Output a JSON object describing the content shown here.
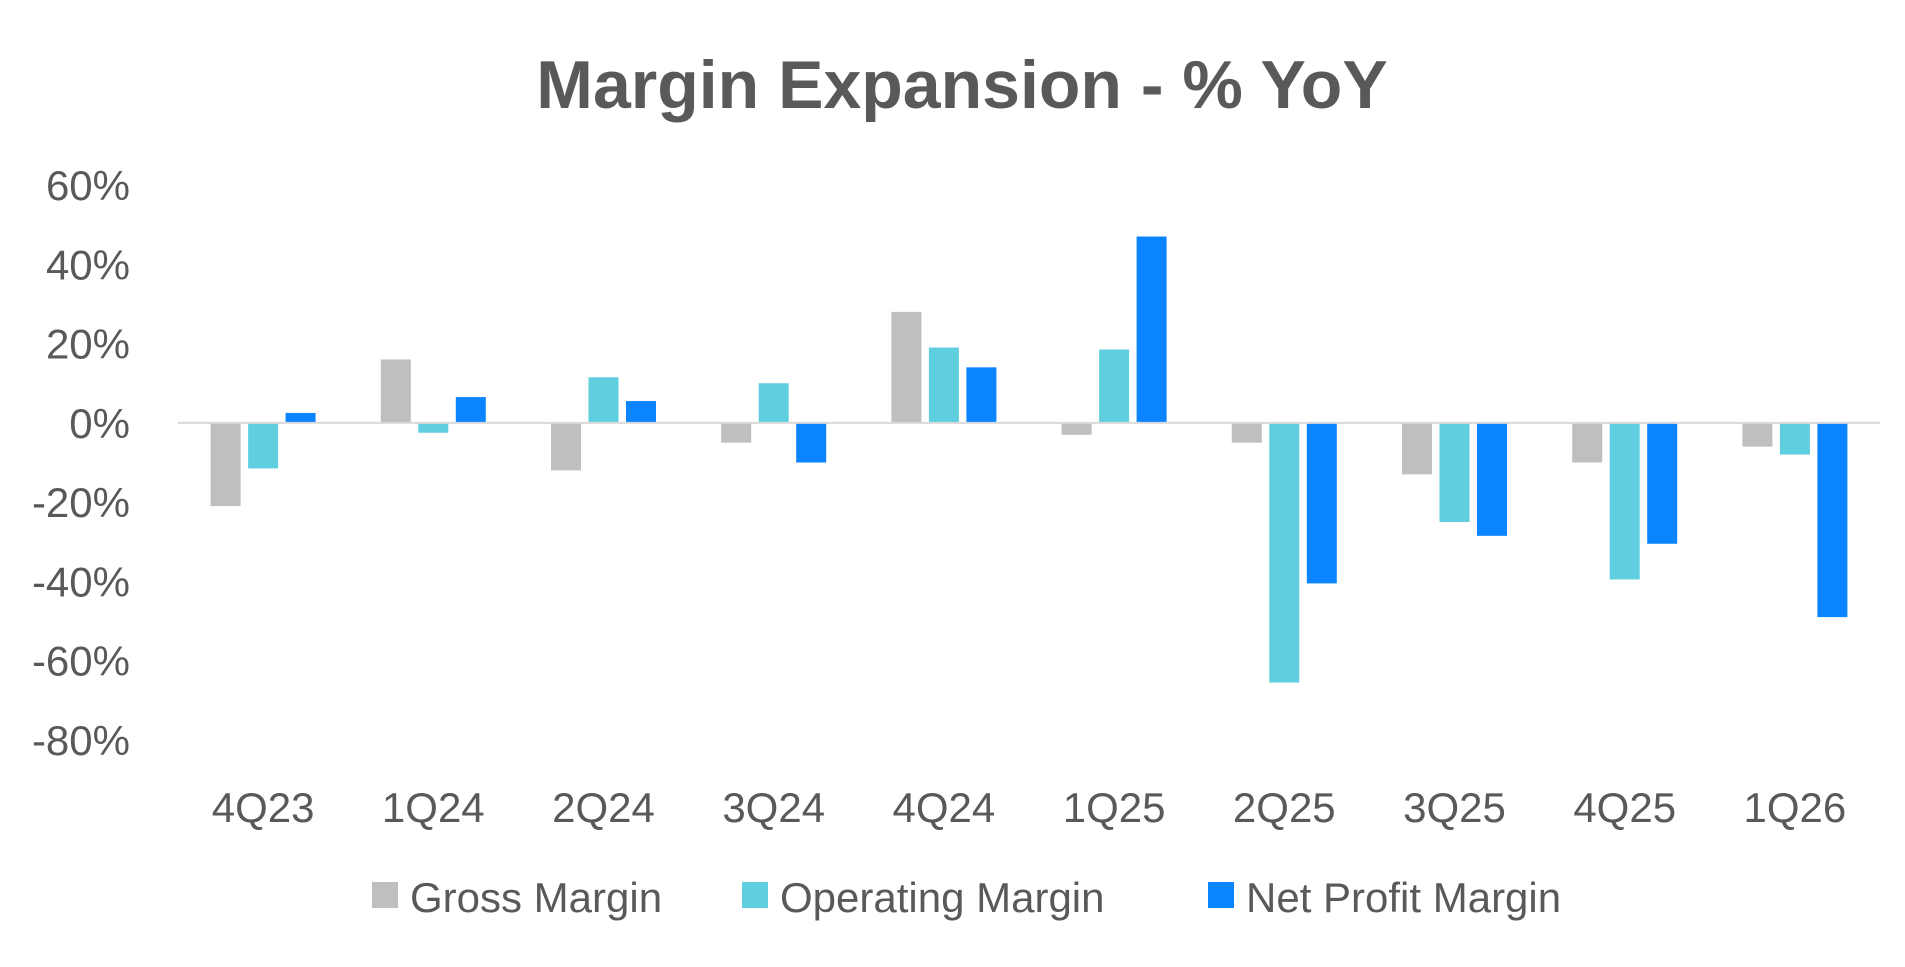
{
  "chart_data": {
    "type": "bar",
    "title": "Margin Expansion - % YoY",
    "xlabel": "",
    "ylabel": "",
    "categories": [
      "4Q23",
      "1Q24",
      "2Q24",
      "3Q24",
      "4Q24",
      "1Q25",
      "2Q25",
      "3Q25",
      "4Q25",
      "1Q26"
    ],
    "series": [
      {
        "name": "Gross Margin",
        "color": "#BFBFBF",
        "values": [
          -21,
          16,
          -12,
          -5,
          28,
          -3,
          -5,
          -13,
          -10,
          -6
        ]
      },
      {
        "name": "Operating Margin",
        "color": "#5FCFDF",
        "values": [
          -11.5,
          -2.5,
          11.5,
          10,
          19,
          18.5,
          -65.5,
          -25,
          -39.5,
          -8
        ]
      },
      {
        "name": "Net Profit Margin",
        "color": "#0A84FF",
        "values": [
          2.5,
          6.5,
          5.5,
          -10,
          14,
          47,
          -40.5,
          -28.5,
          -30.5,
          -49
        ]
      }
    ],
    "ylim": [
      -80,
      60
    ],
    "yticks": [
      60,
      40,
      20,
      0,
      -20,
      -40,
      -60,
      -80
    ],
    "ytick_labels": [
      "60%",
      "40%",
      "20%",
      "0%",
      "-20%",
      "-40%",
      "-60%",
      "-80%"
    ],
    "grid": false,
    "legend_position": "bottom"
  }
}
